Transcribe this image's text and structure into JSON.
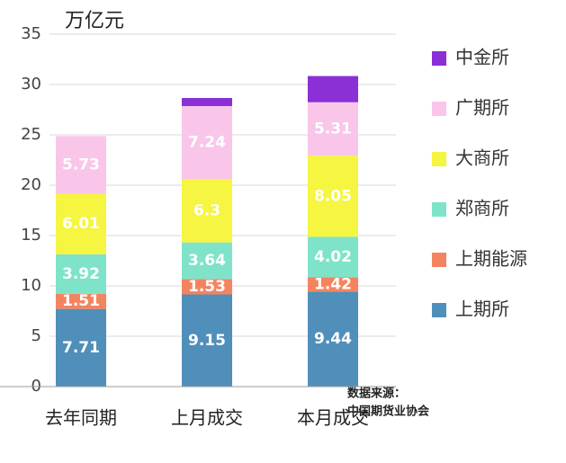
{
  "chart_data": {
    "type": "stacked_bar",
    "unit_label": "万亿元",
    "categories": [
      "去年同期",
      "上月成交",
      "本月成交"
    ],
    "series": [
      {
        "name": "上期所",
        "color": "#4f8fba",
        "values": [
          7.71,
          9.15,
          9.44
        ]
      },
      {
        "name": "上期能源",
        "color": "#f4845f",
        "values": [
          1.51,
          1.53,
          1.42
        ]
      },
      {
        "name": "郑商所",
        "color": "#7fe3c9",
        "values": [
          3.92,
          3.64,
          4.02
        ]
      },
      {
        "name": "大商所",
        "color": "#f5f542",
        "values": [
          6.01,
          6.3,
          8.05
        ]
      },
      {
        "name": "广期所",
        "color": "#f9c6ea",
        "values": [
          5.73,
          7.24,
          5.31
        ]
      },
      {
        "name": "中金所",
        "color": "#8b2fd6",
        "values": [
          0,
          0.8,
          2.6
        ]
      }
    ],
    "ylim": [
      0,
      35
    ],
    "yticks": [
      0,
      5,
      10,
      15,
      20,
      25,
      30,
      35
    ],
    "grid": true,
    "source": [
      "数据来源：",
      "中国期货业协会"
    ]
  }
}
